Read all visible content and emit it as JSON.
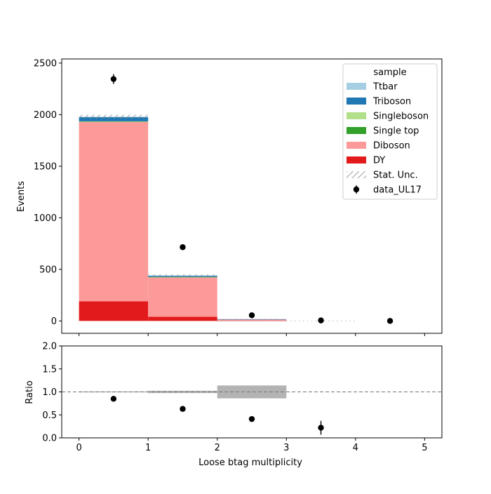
{
  "chart_data": [
    {
      "type": "bar",
      "stacked": true,
      "ylabel": "Events",
      "ylim": [
        -120,
        2540
      ],
      "yticks": [
        0,
        500,
        1000,
        1500,
        2000,
        2500
      ],
      "xlim": [
        -0.25,
        5.25
      ],
      "xticks": [
        0,
        1,
        2,
        3,
        4,
        5
      ],
      "bins": [
        [
          0,
          1
        ],
        [
          1,
          2
        ],
        [
          2,
          3
        ],
        [
          3,
          4
        ],
        [
          4,
          5
        ]
      ],
      "series": [
        {
          "name": "DY",
          "color": "#e31a1c",
          "values": [
            190,
            40,
            4,
            0,
            0
          ]
        },
        {
          "name": "Diboson",
          "color": "#fb9a99",
          "values": [
            1740,
            385,
            12,
            0,
            0
          ]
        },
        {
          "name": "Single top",
          "color": "#33a02c",
          "values": [
            3,
            1,
            0,
            0,
            0
          ]
        },
        {
          "name": "Singleboson",
          "color": "#b2df8a",
          "values": [
            2,
            1,
            0,
            0,
            0
          ]
        },
        {
          "name": "Triboson",
          "color": "#1f78b4",
          "values": [
            40,
            12,
            1,
            0,
            0
          ]
        },
        {
          "name": "Ttbar",
          "color": "#a6cee3",
          "values": [
            5,
            2,
            0,
            0,
            0
          ]
        }
      ],
      "stat_unc": [
        20,
        10,
        3,
        0,
        0
      ],
      "data": {
        "name": "data_UL17",
        "x": [
          0.5,
          1.5,
          2.5,
          3.5,
          4.5
        ],
        "y": [
          2345,
          715,
          55,
          5,
          0
        ],
        "yerr": [
          48,
          27,
          7,
          2.5,
          0
        ]
      },
      "legend": {
        "title": "sample",
        "placement": "top-right",
        "entries": [
          "Ttbar",
          "Triboson",
          "Singleboson",
          "Single top",
          "Diboson",
          "DY",
          "Stat. Unc.",
          "data_UL17"
        ]
      }
    },
    {
      "type": "scatter",
      "xlabel": "Loose btag multiplicity",
      "ylabel": "Ratio",
      "ylim": [
        0,
        2
      ],
      "yticks": [
        "0.0",
        "0.5",
        "1.0",
        "1.5",
        "2.0"
      ],
      "xlim": [
        -0.25,
        5.25
      ],
      "xticks": [
        0,
        1,
        2,
        3,
        4,
        5
      ],
      "reference_line": 1.0,
      "unc_band": [
        {
          "x0": 0,
          "x1": 1,
          "lo": 0.99,
          "hi": 1.01
        },
        {
          "x0": 1,
          "x1": 2,
          "lo": 0.975,
          "hi": 1.025
        },
        {
          "x0": 2,
          "x1": 3,
          "lo": 0.86,
          "hi": 1.14
        }
      ],
      "x": [
        0.5,
        1.5,
        2.5,
        3.5
      ],
      "y": [
        0.85,
        0.63,
        0.41,
        0.22
      ],
      "yerr": [
        0.02,
        0.02,
        0.04,
        0.15
      ]
    }
  ]
}
